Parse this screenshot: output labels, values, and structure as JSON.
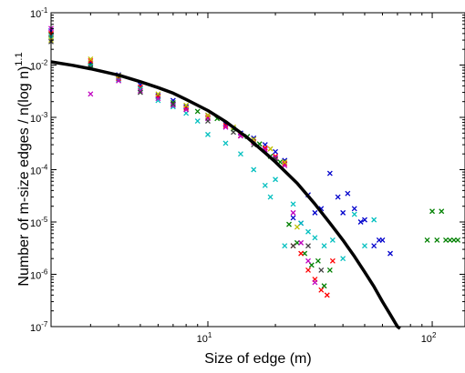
{
  "chart_data": {
    "type": "scatter",
    "title": "",
    "xlabel": "Size of edge (m)",
    "ylabel": "Number of m-size edges / n(log n)",
    "ylabel_exponent": "1.1",
    "xscale": "log",
    "yscale": "log",
    "xlim": [
      2,
      140
    ],
    "ylim": [
      1e-07,
      0.1
    ],
    "grid": false,
    "legend": "none",
    "x_ticks": [
      {
        "base": "10",
        "exp": "1",
        "value": 10
      },
      {
        "base": "10",
        "exp": "2",
        "value": 100
      }
    ],
    "y_ticks": [
      {
        "base": "10",
        "exp": "-1",
        "value": 0.1
      },
      {
        "base": "10",
        "exp": "-2",
        "value": 0.01
      },
      {
        "base": "10",
        "exp": "-3",
        "value": 0.001
      },
      {
        "base": "10",
        "exp": "-4",
        "value": 0.0001
      },
      {
        "base": "10",
        "exp": "-5",
        "value": 1e-05
      },
      {
        "base": "10",
        "exp": "-6",
        "value": 1e-06
      },
      {
        "base": "10",
        "exp": "-7",
        "value": 1e-07
      }
    ],
    "marker": "x",
    "colors": [
      "#0000cc",
      "#008000",
      "#ff0000",
      "#00bfbf",
      "#bf00bf",
      "#bfbf00",
      "#404040"
    ],
    "fit_curve": {
      "color": "#000000",
      "x": [
        2,
        2.5,
        3,
        4,
        5,
        6,
        7,
        8,
        10,
        12,
        15,
        18,
        20,
        25,
        30,
        35,
        40,
        45,
        50,
        55,
        60,
        65,
        70,
        72
      ],
      "y": [
        0.0115,
        0.0099,
        0.0085,
        0.0064,
        0.0048,
        0.0037,
        0.0029,
        0.0022,
        0.00135,
        0.00083,
        0.00041,
        0.00021,
        0.00014,
        5.5e-05,
        2.2e-05,
        9.5e-06,
        4.5e-06,
        2.2e-06,
        1.1e-06,
        5.8e-07,
        3e-07,
        1.7e-07,
        1e-07,
        8e-08
      ]
    },
    "series": [
      {
        "color": "#0000cc",
        "x": [
          2,
          3,
          4,
          5,
          6,
          7,
          8,
          10,
          12,
          14,
          16,
          18,
          20,
          22,
          24,
          26,
          28,
          30,
          32,
          35,
          38,
          40,
          42,
          45,
          48,
          50,
          55,
          58,
          60,
          65
        ],
        "y": [
          0.045,
          0.011,
          0.0065,
          0.0042,
          0.0026,
          0.0021,
          0.0016,
          0.0011,
          0.00075,
          0.0005,
          0.0004,
          0.0003,
          0.00022,
          0.00015,
          1.2e-05,
          9.5e-06,
          3.3e-05,
          1.5e-05,
          1.8e-05,
          8.5e-05,
          3e-05,
          1.5e-05,
          3.5e-05,
          1.8e-05,
          1e-05,
          1.1e-05,
          3.5e-06,
          4.5e-06,
          4.5e-06,
          2.5e-06
        ]
      },
      {
        "color": "#008000",
        "x": [
          2,
          3,
          4,
          5,
          7,
          9,
          11,
          13,
          15,
          17,
          19,
          21,
          23,
          25,
          27,
          29,
          31,
          33,
          35,
          95,
          100,
          105,
          110,
          115,
          120,
          125,
          130
        ],
        "y": [
          0.038,
          0.01,
          0.0058,
          0.0035,
          0.0019,
          0.0013,
          0.00095,
          0.0006,
          0.00043,
          0.00031,
          0.00018,
          0.00014,
          9e-06,
          4e-06,
          2.5e-06,
          1.5e-06,
          1.8e-06,
          6e-07,
          1.2e-06,
          4.5e-06,
          1.6e-05,
          4.5e-06,
          1.6e-05,
          4.5e-06,
          4.5e-06,
          4.5e-06,
          4.5e-06
        ]
      },
      {
        "color": "#ff0000",
        "x": [
          2,
          3,
          4,
          5,
          6,
          8,
          10,
          12,
          14,
          16,
          18,
          20,
          22,
          24,
          26,
          28,
          30,
          32,
          34,
          36
        ],
        "y": [
          0.04,
          0.012,
          0.0055,
          0.0038,
          0.0025,
          0.0015,
          0.001,
          0.0007,
          0.00045,
          0.00034,
          0.00026,
          0.00018,
          0.00013,
          3.5e-06,
          2.5e-06,
          1.2e-06,
          8e-07,
          5e-07,
          4e-07,
          1.8e-06
        ]
      },
      {
        "color": "#00bfbf",
        "x": [
          2,
          3,
          4,
          5,
          6,
          7,
          8,
          9,
          10,
          12,
          14,
          16,
          18,
          19,
          20,
          22,
          24,
          26,
          28,
          30,
          33,
          36,
          40,
          45,
          50,
          55
        ],
        "y": [
          0.035,
          0.0095,
          0.0052,
          0.0035,
          0.0021,
          0.0016,
          0.0012,
          0.00085,
          0.00047,
          0.00032,
          0.0002,
          0.0001,
          5e-05,
          3e-05,
          6.5e-05,
          3.5e-06,
          2.2e-05,
          9.5e-06,
          6.5e-06,
          5e-06,
          3.5e-06,
          4.5e-06,
          2e-06,
          1.4e-05,
          3.5e-06,
          1.1e-05
        ]
      },
      {
        "color": "#bf00bf",
        "x": [
          2,
          3,
          4,
          5,
          6,
          7,
          8,
          10,
          12,
          14,
          16,
          18,
          20,
          22,
          24,
          26,
          28,
          30
        ],
        "y": [
          0.05,
          0.0028,
          0.005,
          0.0032,
          0.0023,
          0.0017,
          0.0014,
          0.00095,
          0.00065,
          0.00044,
          0.00033,
          0.00024,
          0.00017,
          0.00012,
          1.5e-05,
          4e-06,
          1.8e-06,
          7e-07
        ]
      },
      {
        "color": "#bfbf00",
        "x": [
          2,
          3,
          4,
          6,
          8,
          10,
          13,
          16,
          19,
          22,
          25
        ],
        "y": [
          0.03,
          0.013,
          0.0063,
          0.0028,
          0.0017,
          0.0011,
          0.00065,
          0.00038,
          0.00025,
          0.00014,
          8e-06
        ]
      },
      {
        "color": "#404040",
        "x": [
          2,
          3,
          5,
          7,
          10,
          13,
          16,
          20,
          24,
          28,
          32
        ],
        "y": [
          0.028,
          0.009,
          0.003,
          0.0018,
          0.00085,
          0.00052,
          0.0003,
          0.00016,
          3.5e-06,
          3.5e-06,
          1.2e-06
        ]
      }
    ]
  }
}
